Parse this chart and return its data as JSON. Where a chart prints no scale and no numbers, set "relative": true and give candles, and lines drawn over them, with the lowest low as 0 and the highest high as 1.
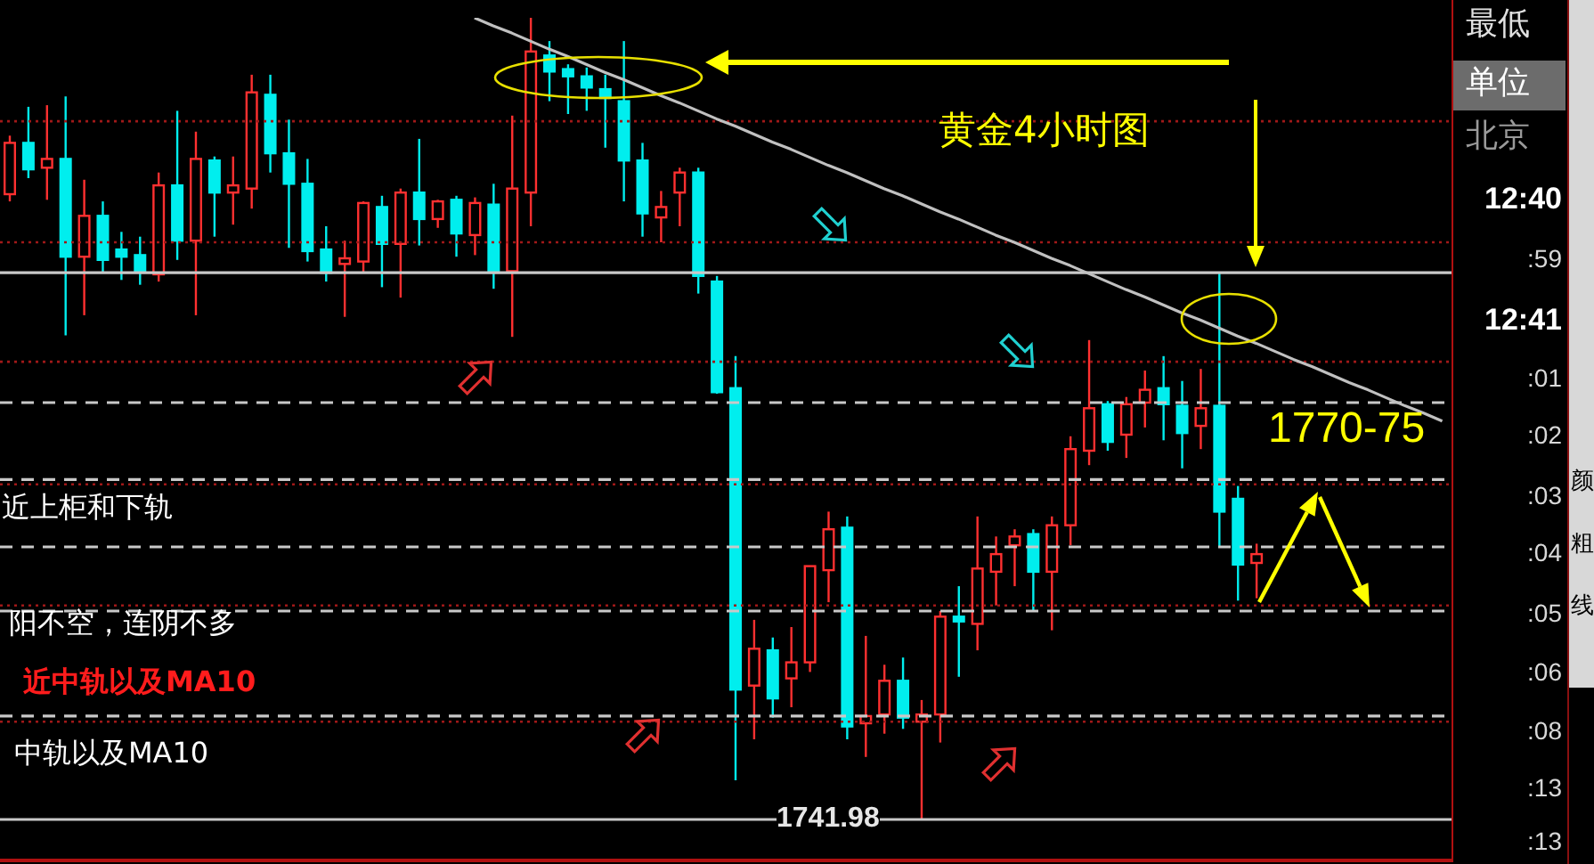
{
  "chart_data": {
    "type": "candlestick",
    "title": "黄金4小时图",
    "relative": true,
    "categories": [
      null,
      null,
      null,
      null,
      null,
      null,
      null,
      null,
      null,
      null,
      null,
      null,
      null,
      null,
      null,
      null,
      null,
      null,
      null,
      null,
      null,
      null,
      null,
      null,
      null,
      null,
      null,
      null,
      null,
      null,
      null,
      null,
      null,
      null,
      null,
      null,
      null,
      null,
      null,
      null,
      null,
      null,
      null,
      null,
      null,
      null,
      null,
      null,
      null,
      null,
      null,
      null,
      null,
      null,
      null,
      null,
      null,
      null,
      null,
      null,
      null,
      null,
      null,
      null,
      null,
      null,
      null,
      null,
      null,
      null,
      null,
      null,
      null,
      null,
      null,
      null,
      null,
      null
    ],
    "ohlc": [
      [
        0.78,
        0.853,
        0.771,
        0.844
      ],
      [
        0.844,
        0.889,
        0.8,
        0.811
      ],
      [
        0.813,
        0.891,
        0.773,
        0.824
      ],
      [
        0.824,
        0.902,
        0.604,
        0.702
      ],
      [
        0.702,
        0.798,
        0.629,
        0.753
      ],
      [
        0.753,
        0.771,
        0.682,
        0.698
      ],
      [
        0.711,
        0.733,
        0.673,
        0.702
      ],
      [
        0.704,
        0.727,
        0.667,
        0.684
      ],
      [
        0.68,
        0.807,
        0.671,
        0.791
      ],
      [
        0.791,
        0.884,
        0.698,
        0.722
      ],
      [
        0.722,
        0.858,
        0.629,
        0.824
      ],
      [
        0.822,
        0.827,
        0.727,
        0.782
      ],
      [
        0.782,
        0.827,
        0.742,
        0.791
      ],
      [
        0.787,
        0.929,
        0.762,
        0.907
      ],
      [
        0.904,
        0.929,
        0.807,
        0.831
      ],
      [
        0.831,
        0.873,
        0.713,
        0.793
      ],
      [
        0.793,
        0.824,
        0.696,
        0.709
      ],
      [
        0.711,
        0.74,
        0.671,
        0.682
      ],
      [
        0.693,
        0.722,
        0.627,
        0.7
      ],
      [
        0.696,
        0.771,
        0.682,
        0.769
      ],
      [
        0.764,
        0.778,
        0.664,
        0.718
      ],
      [
        0.718,
        0.787,
        0.651,
        0.782
      ],
      [
        0.782,
        0.849,
        0.716,
        0.749
      ],
      [
        0.749,
        0.773,
        0.738,
        0.771
      ],
      [
        0.773,
        0.778,
        0.702,
        0.731
      ],
      [
        0.729,
        0.776,
        0.704,
        0.769
      ],
      [
        0.767,
        0.793,
        0.662,
        0.684
      ],
      [
        0.684,
        0.878,
        0.602,
        0.787
      ],
      [
        0.782,
        1,
        0.74,
        0.958
      ],
      [
        0.953,
        0.971,
        0.896,
        0.933
      ],
      [
        0.936,
        0.942,
        0.88,
        0.927
      ],
      [
        0.927,
        0.938,
        0.884,
        0.913
      ],
      [
        0.911,
        0.929,
        0.838,
        0.9
      ],
      [
        0.896,
        0.971,
        0.771,
        0.822
      ],
      [
        0.822,
        0.844,
        0.727,
        0.756
      ],
      [
        0.751,
        0.784,
        0.72,
        0.764
      ],
      [
        0.782,
        0.813,
        0.74,
        0.807
      ],
      [
        0.807,
        0.813,
        0.656,
        0.678
      ],
      [
        0.671,
        0.678,
        0.531,
        0.533
      ],
      [
        0.538,
        0.578,
        0.049,
        0.162
      ],
      [
        0.167,
        0.249,
        0.1,
        0.213
      ],
      [
        0.211,
        0.227,
        0.127,
        0.151
      ],
      [
        0.176,
        0.24,
        0.14,
        0.196
      ],
      [
        0.196,
        0.316,
        0.184,
        0.316
      ],
      [
        0.311,
        0.384,
        0.271,
        0.362
      ],
      [
        0.364,
        0.378,
        0.1,
        0.116
      ],
      [
        0.12,
        0.229,
        0.078,
        0.129
      ],
      [
        0.131,
        0.193,
        0.107,
        0.173
      ],
      [
        0.173,
        0.202,
        0.113,
        0.127
      ],
      [
        0.122,
        0.149,
        0,
        0.131
      ],
      [
        0.131,
        0.26,
        0.096,
        0.253
      ],
      [
        0.253,
        0.291,
        0.178,
        0.247
      ],
      [
        0.244,
        0.378,
        0.211,
        0.313
      ],
      [
        0.309,
        0.353,
        0.267,
        0.331
      ],
      [
        0.342,
        0.362,
        0.291,
        0.353
      ],
      [
        0.356,
        0.362,
        0.26,
        0.309
      ],
      [
        0.309,
        0.378,
        0.236,
        0.367
      ],
      [
        0.367,
        0.478,
        0.342,
        0.462
      ],
      [
        0.46,
        0.598,
        0.442,
        0.513
      ],
      [
        0.518,
        0.522,
        0.46,
        0.471
      ],
      [
        0.48,
        0.527,
        0.451,
        0.518
      ],
      [
        0.52,
        0.56,
        0.489,
        0.536
      ],
      [
        0.538,
        0.578,
        0.473,
        0.518
      ],
      [
        0.516,
        0.547,
        0.438,
        0.482
      ],
      [
        0.491,
        0.562,
        0.462,
        0.513
      ],
      [
        0.516,
        0.682,
        0.34,
        0.384
      ],
      [
        0.4,
        0.416,
        0.273,
        0.318
      ],
      [
        0.32,
        0.344,
        0.276,
        0.331
      ],
      null,
      null,
      null,
      null,
      null,
      null,
      null,
      null,
      null,
      null
    ],
    "colors": [
      "#ff3030",
      "#00eeee",
      "#ff3030",
      "#00eeee",
      "#ff3030",
      "#00eeee",
      "#00eeee",
      "#00eeee",
      "#ff3030",
      "#00eeee",
      "#ff3030",
      "#00eeee",
      "#ff3030",
      "#ff3030",
      "#00eeee",
      "#00eeee",
      "#00eeee",
      "#00eeee",
      "#ff3030",
      "#ff3030",
      "#00eeee",
      "#ff3030",
      "#00eeee",
      "#ff3030",
      "#00eeee",
      "#ff3030",
      "#00eeee",
      "#ff3030",
      "#ff3030",
      "#00eeee",
      "#00eeee",
      "#00eeee",
      "#00eeee",
      "#00eeee",
      "#00eeee",
      "#ff3030",
      "#ff3030",
      "#00eeee",
      "#00eeee",
      "#00eeee",
      "#ff3030",
      "#00eeee",
      "#ff3030",
      "#ff3030",
      "#ff3030",
      "#00eeee",
      "#ff3030",
      "#ff3030",
      "#00eeee",
      "#ff3030",
      "#ff3030",
      "#00eeee",
      "#ff3030",
      "#ff3030",
      "#ff3030",
      "#00eeee",
      "#ff3030",
      "#ff3030",
      "#ff3030",
      "#00eeee",
      "#ff3030",
      "#ff3030",
      "#00eeee",
      "#00eeee",
      "#ff3030",
      "#00eeee",
      "#00eeee",
      "#ff3030",
      null,
      null,
      null,
      null,
      null,
      null,
      null,
      null,
      null,
      null
    ],
    "series": [
      {
        "type": "line",
        "color": "#c0c0c0",
        "values": [
          null,
          null,
          null,
          null,
          null,
          null,
          null,
          null,
          null,
          null,
          null,
          null,
          null,
          null,
          null,
          null,
          null,
          null,
          null,
          null,
          null,
          null,
          null,
          null,
          null,
          1,
          0.99,
          0.981,
          0.971,
          0.961,
          0.952,
          0.942,
          0.932,
          0.923,
          0.913,
          0.903,
          0.894,
          0.884,
          0.874,
          0.865,
          0.855,
          0.845,
          0.836,
          0.826,
          0.816,
          0.807,
          0.797,
          0.787,
          0.778,
          0.768,
          0.758,
          0.749,
          0.739,
          0.729,
          0.72,
          0.71,
          0.7,
          0.691,
          0.681,
          0.671,
          0.661,
          0.652,
          0.642,
          0.632,
          0.623,
          0.613,
          0.603,
          0.594,
          0.584,
          0.574,
          0.565,
          0.555,
          0.545,
          0.536,
          0.526,
          0.516,
          0.507,
          0.497
        ]
      }
    ],
    "ref_lines": [
      {
        "axis": "y",
        "value": 0.871,
        "color": "#a01818",
        "line_style": "dotted"
      },
      {
        "axis": "y",
        "value": 0.72,
        "color": "#a01818",
        "line_style": "dotted"
      },
      {
        "axis": "y",
        "value": 0.571,
        "color": "#a01818",
        "line_style": "dotted"
      },
      {
        "axis": "y",
        "value": 0.418,
        "color": "#a01818",
        "line_style": "dotted"
      },
      {
        "axis": "y",
        "value": 0.267,
        "color": "#a01818",
        "line_style": "dotted"
      },
      {
        "axis": "y",
        "value": 0.122,
        "color": "#a01818",
        "line_style": "dotted"
      },
      {
        "axis": "y",
        "value": 0.682,
        "color": "#c8c8c8",
        "line_style": "solid"
      },
      {
        "axis": "y",
        "value": 0.52,
        "color": "#c8c8c8",
        "line_style": "dashed"
      },
      {
        "axis": "y",
        "value": 0.424,
        "color": "#c8c8c8",
        "line_style": "dashed"
      },
      {
        "axis": "y",
        "value": 0.34,
        "color": "#c8c8c8",
        "line_style": "dashed"
      },
      {
        "axis": "y",
        "value": 0.26,
        "color": "#c8c8c8",
        "line_style": "dashed"
      },
      {
        "axis": "y",
        "value": 0.129,
        "color": "#c8c8c8",
        "line_style": "dashed"
      },
      {
        "axis": "y",
        "value": 0,
        "color": "#c8c8c8",
        "line_style": "solid"
      }
    ],
    "annotations": [
      "1770-75",
      "近上柜和下轨",
      "阳不空，连阴不多",
      "近中轨以及MA10",
      "中轨以及MA10",
      "最低",
      "单位",
      "北京",
      "12:40",
      ":59",
      "12:41",
      ":01",
      ":02",
      ":03",
      ":04",
      ":05",
      ":06",
      ":08",
      ":13",
      ":13",
      "颜",
      "粗",
      "线",
      "1741.98"
    ]
  }
}
